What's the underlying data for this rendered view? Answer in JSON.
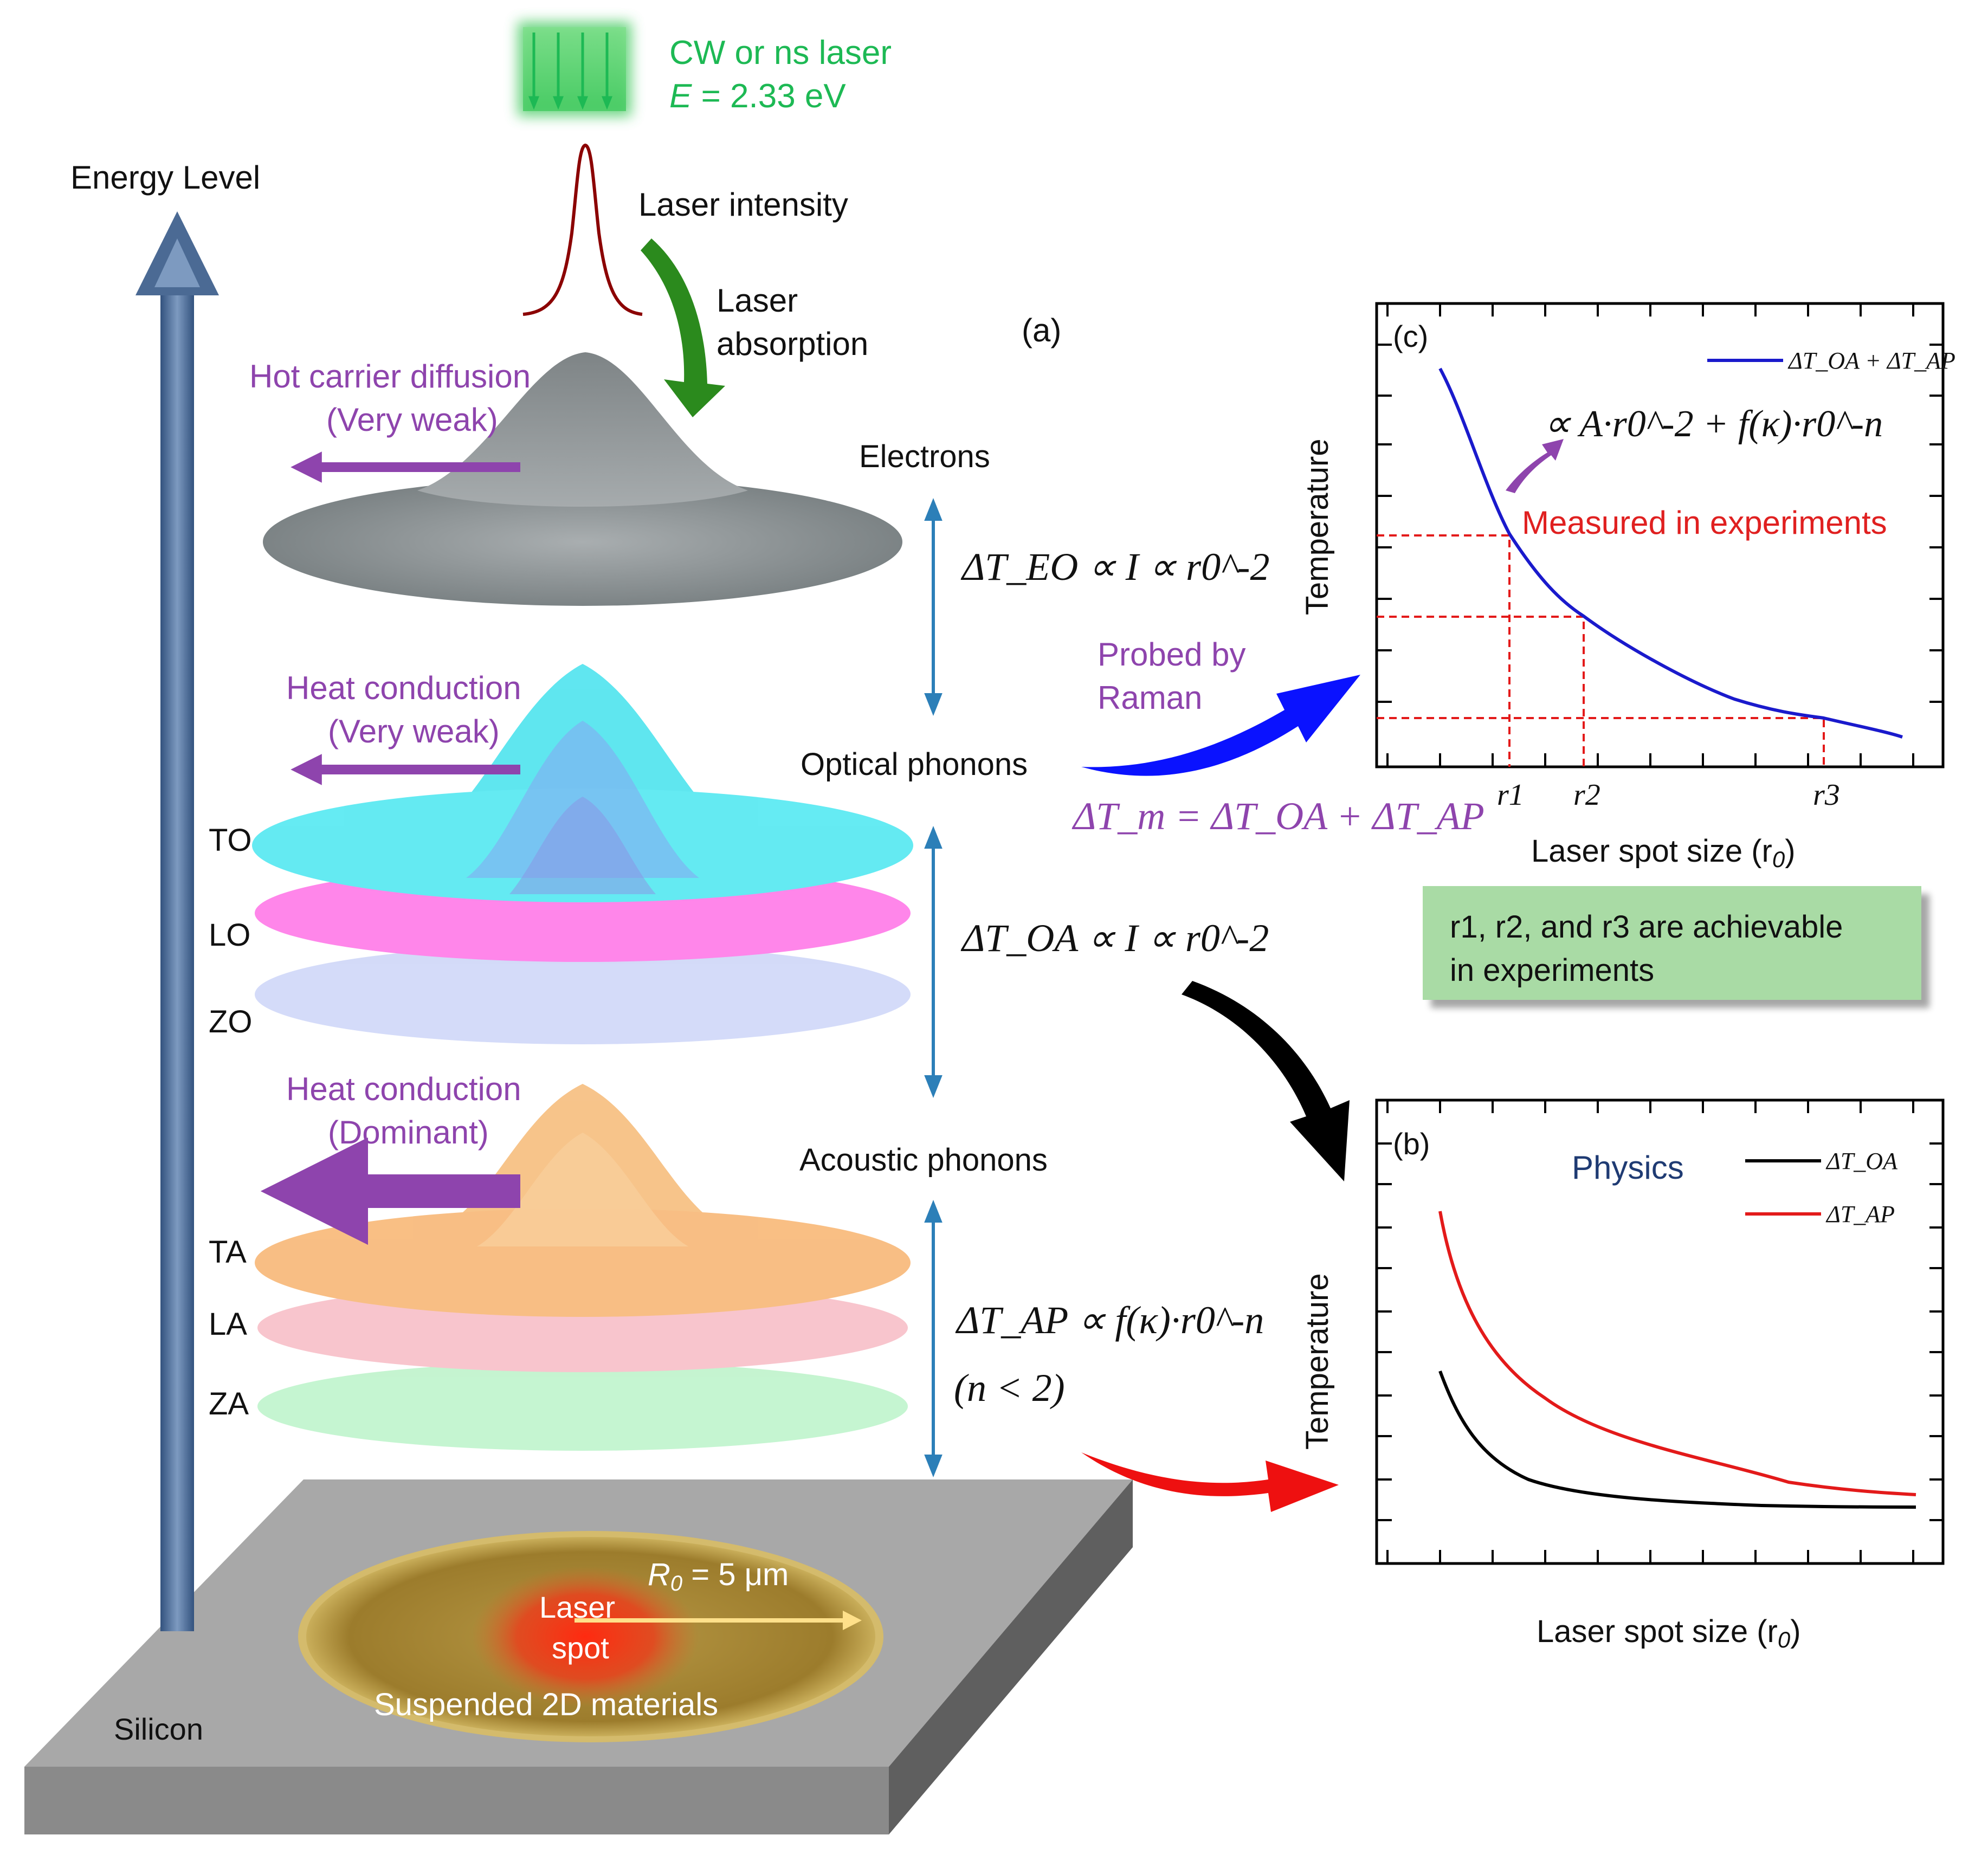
{
  "panel_a": {
    "label": "(a)",
    "laser": {
      "line1": "CW or ns laser",
      "line2_var": "E",
      "line2_rest": " = 2.33 eV"
    },
    "energy_axis": "Energy Level",
    "laser_intensity": "Laser intensity",
    "laser_absorption": [
      "Laser",
      "absorption"
    ],
    "hot_carrier": [
      "Hot carrier diffusion",
      "(Very weak)"
    ],
    "heat_cond_optical": [
      "Heat conduction",
      "(Very weak)"
    ],
    "heat_cond_acoustic": [
      "Heat conduction",
      "(Dominant)"
    ],
    "electrons": "Electrons",
    "optical_phonons": "Optical phonons",
    "acoustic_phonons": "Acoustic phonons",
    "optical_modes": [
      "TO",
      "LO",
      "ZO"
    ],
    "acoustic_modes": [
      "TA",
      "LA",
      "ZA"
    ],
    "eq_eo": "ΔT_EO ∝ I ∝ r0^-2",
    "eq_oa": "ΔT_OA ∝ I ∝ r0^-2",
    "eq_ap": "ΔT_AP ∝ f(κ)·r0^-n",
    "eq_ap_cond": "(n < 2)",
    "probed": [
      "Probed by",
      "Raman"
    ],
    "eq_m": "ΔT_m = ΔT_OA + ΔT_AP",
    "substrate": "Silicon",
    "sample": "Suspended 2D materials",
    "laser_spot": [
      "Laser",
      "spot"
    ],
    "radius_var": "R",
    "radius_sub": "0",
    "radius_rest": " = 5 μm"
  },
  "panel_c": {
    "label": "(c)",
    "ylabel": "Temperature",
    "xlabel": "Laser spot size (r",
    "xlabel_sub": "0",
    "xlabel_end": ")",
    "legend": "ΔT_OA + ΔT_AP",
    "formula": "∝ A·r0^-2 + f(κ)·r0^-n",
    "measured": "Measured in experiments",
    "ticks": [
      "r1",
      "r2",
      "r3"
    ],
    "note_line1": "r1, r2, and r3 are achievable",
    "note_line2": "in experiments"
  },
  "panel_b": {
    "label": "(b)",
    "title": "Physics",
    "ylabel": "Temperature",
    "xlabel": "Laser spot size (r",
    "xlabel_sub": "0",
    "xlabel_end": ")",
    "legend": [
      "ΔT_OA",
      "ΔT_AP"
    ]
  },
  "colors": {
    "laser": "#1db954",
    "purple": "#8e44ad",
    "red_label": "#e02020",
    "blue_curve": "#1a1acc",
    "navy": "#1f3b73",
    "axis_arrow": "#4b6a94"
  }
}
